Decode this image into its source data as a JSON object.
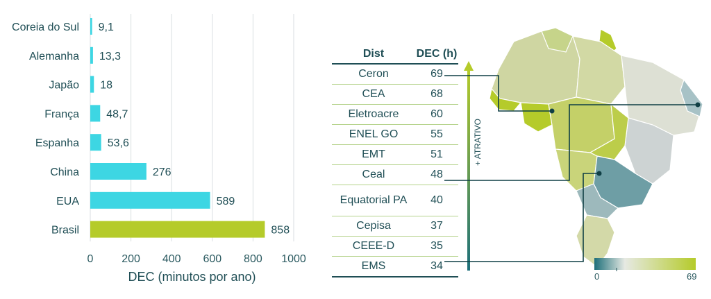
{
  "chart_data": [
    {
      "type": "bar",
      "orientation": "horizontal",
      "categories": [
        "Coreia do Sul",
        "Alemanha",
        "Japão",
        "França",
        "Espanha",
        "China",
        "EUA",
        "Brasil"
      ],
      "values": [
        9.1,
        13.3,
        18,
        48.7,
        53.6,
        276,
        589,
        858
      ],
      "value_labels": [
        "9,1",
        "13,3",
        "18",
        "48,7",
        "53,6",
        "276",
        "589",
        "858"
      ],
      "xlabel": "DEC (minutos por ano)",
      "xlim": [
        0,
        1000
      ],
      "xticks": [
        0,
        200,
        400,
        600,
        800,
        1000
      ],
      "grid": "vertical",
      "colors": {
        "default": "#3dd6e3",
        "highlight": "#b5cb2a",
        "highlight_category": "Brasil"
      }
    },
    {
      "type": "table",
      "columns": [
        "Dist",
        "DEC (h)"
      ],
      "rows": [
        [
          "Ceron",
          "69"
        ],
        [
          "CEA",
          "68"
        ],
        [
          "Eletroacre",
          "60"
        ],
        [
          "ENEL GO",
          "55"
        ],
        [
          "EMT",
          "51"
        ],
        [
          "Ceal",
          "48"
        ],
        [
          "Equatorial PA",
          "40"
        ],
        [
          "Cepisa",
          "37"
        ],
        [
          "CEEE-D",
          "35"
        ],
        [
          "EMS",
          "34"
        ]
      ],
      "arrow_label": "+ ATRATIVO"
    }
  ],
  "map": {
    "legend_min": "0",
    "legend_max": "69",
    "colors": {
      "low": "#1d6f7a",
      "mid": "#e6e9e3",
      "high": "#b5cb2a",
      "line": "#0f3f45"
    }
  }
}
